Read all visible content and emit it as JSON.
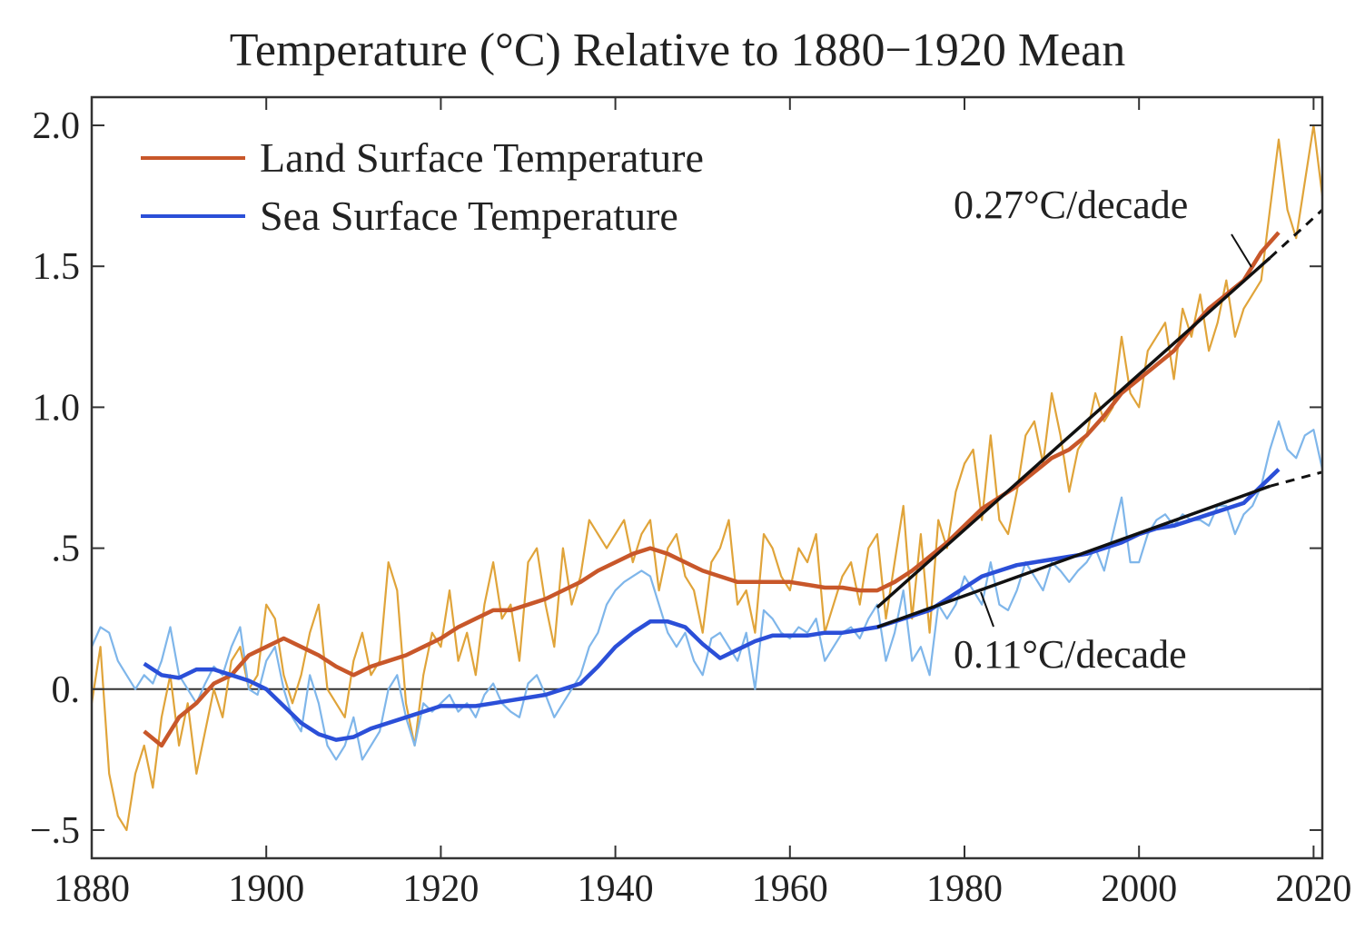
{
  "chart_data": {
    "type": "line",
    "title": "Temperature (°C) Relative to 1880−1920 Mean",
    "xlabel": "",
    "ylabel": "",
    "xlim": [
      1880,
      2021
    ],
    "ylim": [
      -0.6,
      2.1
    ],
    "x_ticks": [
      1880,
      1900,
      1920,
      1940,
      1960,
      1980,
      2000,
      2020
    ],
    "x_tick_labels": [
      "1880",
      "1900",
      "1920",
      "1940",
      "1960",
      "1980",
      "2000",
      "2020"
    ],
    "y_ticks": [
      -0.5,
      0,
      0.5,
      1.0,
      1.5,
      2.0
    ],
    "y_tick_labels": [
      "−.5",
      "0.",
      ".5",
      "1.0",
      "1.5",
      "2.0"
    ],
    "grid": false,
    "legend_position": "top-left",
    "legend": [
      {
        "label": "Land Surface Temperature",
        "color": "#c8572a"
      },
      {
        "label": "Sea Surface Temperature",
        "color": "#2b4fd8"
      }
    ],
    "colors": {
      "land_annual": "#e0a43a",
      "land_smooth": "#c8572a",
      "sea_annual": "#7fb6ea",
      "sea_smooth": "#2b4fd8",
      "trend": "#111111",
      "zero_line": "#333333"
    },
    "series": [
      {
        "name": "Land Surface Temperature",
        "role": "annual",
        "color": "#e0a43a",
        "x": [
          1880,
          1881,
          1882,
          1883,
          1884,
          1885,
          1886,
          1887,
          1888,
          1889,
          1890,
          1891,
          1892,
          1893,
          1894,
          1895,
          1896,
          1897,
          1898,
          1899,
          1900,
          1901,
          1902,
          1903,
          1904,
          1905,
          1906,
          1907,
          1908,
          1909,
          1910,
          1911,
          1912,
          1913,
          1914,
          1915,
          1916,
          1917,
          1918,
          1919,
          1920,
          1921,
          1922,
          1923,
          1924,
          1925,
          1926,
          1927,
          1928,
          1929,
          1930,
          1931,
          1932,
          1933,
          1934,
          1935,
          1936,
          1937,
          1938,
          1939,
          1940,
          1941,
          1942,
          1943,
          1944,
          1945,
          1946,
          1947,
          1948,
          1949,
          1950,
          1951,
          1952,
          1953,
          1954,
          1955,
          1956,
          1957,
          1958,
          1959,
          1960,
          1961,
          1962,
          1963,
          1964,
          1965,
          1966,
          1967,
          1968,
          1969,
          1970,
          1971,
          1972,
          1973,
          1974,
          1975,
          1976,
          1977,
          1978,
          1979,
          1980,
          1981,
          1982,
          1983,
          1984,
          1985,
          1986,
          1987,
          1988,
          1989,
          1990,
          1991,
          1992,
          1993,
          1994,
          1995,
          1996,
          1997,
          1998,
          1999,
          2000,
          2001,
          2002,
          2003,
          2004,
          2005,
          2006,
          2007,
          2008,
          2009,
          2010,
          2011,
          2012,
          2013,
          2014,
          2015,
          2016,
          2017,
          2018,
          2019,
          2020,
          2021
        ],
        "y": [
          -0.05,
          0.15,
          -0.3,
          -0.45,
          -0.5,
          -0.3,
          -0.2,
          -0.35,
          -0.1,
          0.05,
          -0.2,
          -0.05,
          -0.3,
          -0.15,
          0.0,
          -0.1,
          0.1,
          0.15,
          0.0,
          0.05,
          0.3,
          0.25,
          0.05,
          -0.05,
          0.05,
          0.2,
          0.3,
          0.0,
          -0.05,
          -0.1,
          0.1,
          0.2,
          0.05,
          0.1,
          0.45,
          0.35,
          -0.05,
          -0.2,
          0.05,
          0.2,
          0.15,
          0.35,
          0.1,
          0.2,
          0.05,
          0.3,
          0.45,
          0.25,
          0.3,
          0.1,
          0.45,
          0.5,
          0.3,
          0.15,
          0.5,
          0.3,
          0.4,
          0.6,
          0.55,
          0.5,
          0.55,
          0.6,
          0.45,
          0.55,
          0.6,
          0.35,
          0.5,
          0.55,
          0.4,
          0.35,
          0.2,
          0.45,
          0.5,
          0.6,
          0.3,
          0.35,
          0.2,
          0.55,
          0.5,
          0.4,
          0.35,
          0.5,
          0.45,
          0.55,
          0.2,
          0.3,
          0.4,
          0.45,
          0.3,
          0.5,
          0.55,
          0.25,
          0.45,
          0.65,
          0.25,
          0.55,
          0.2,
          0.6,
          0.5,
          0.7,
          0.8,
          0.85,
          0.6,
          0.9,
          0.6,
          0.55,
          0.7,
          0.9,
          0.95,
          0.8,
          1.05,
          0.9,
          0.7,
          0.85,
          0.9,
          1.05,
          0.95,
          1.0,
          1.25,
          1.05,
          1.0,
          1.2,
          1.25,
          1.3,
          1.1,
          1.35,
          1.25,
          1.4,
          1.2,
          1.3,
          1.45,
          1.25,
          1.35,
          1.4,
          1.45,
          1.7,
          1.95,
          1.7,
          1.6,
          1.8,
          2.0,
          1.75
        ]
      },
      {
        "name": "Land Surface Temperature",
        "role": "smoothed",
        "color": "#c8572a",
        "x": [
          1886,
          1888,
          1890,
          1892,
          1894,
          1896,
          1898,
          1900,
          1902,
          1904,
          1906,
          1908,
          1910,
          1912,
          1914,
          1916,
          1918,
          1920,
          1922,
          1924,
          1926,
          1928,
          1930,
          1932,
          1934,
          1936,
          1938,
          1940,
          1942,
          1944,
          1946,
          1948,
          1950,
          1952,
          1954,
          1956,
          1958,
          1960,
          1962,
          1964,
          1966,
          1968,
          1970,
          1972,
          1974,
          1976,
          1978,
          1980,
          1982,
          1984,
          1986,
          1988,
          1990,
          1992,
          1994,
          1996,
          1998,
          2000,
          2002,
          2004,
          2006,
          2008,
          2010,
          2012,
          2014,
          2016
        ],
        "y": [
          -0.15,
          -0.2,
          -0.1,
          -0.05,
          0.02,
          0.05,
          0.12,
          0.15,
          0.18,
          0.15,
          0.12,
          0.08,
          0.05,
          0.08,
          0.1,
          0.12,
          0.15,
          0.18,
          0.22,
          0.25,
          0.28,
          0.28,
          0.3,
          0.32,
          0.35,
          0.38,
          0.42,
          0.45,
          0.48,
          0.5,
          0.48,
          0.45,
          0.42,
          0.4,
          0.38,
          0.38,
          0.38,
          0.38,
          0.37,
          0.36,
          0.36,
          0.35,
          0.35,
          0.38,
          0.42,
          0.47,
          0.52,
          0.58,
          0.64,
          0.68,
          0.72,
          0.77,
          0.82,
          0.85,
          0.9,
          0.97,
          1.05,
          1.1,
          1.15,
          1.2,
          1.28,
          1.35,
          1.4,
          1.45,
          1.55,
          1.62
        ]
      },
      {
        "name": "Sea Surface Temperature",
        "role": "annual",
        "color": "#7fb6ea",
        "x": [
          1880,
          1881,
          1882,
          1883,
          1884,
          1885,
          1886,
          1887,
          1888,
          1889,
          1890,
          1891,
          1892,
          1893,
          1894,
          1895,
          1896,
          1897,
          1898,
          1899,
          1900,
          1901,
          1902,
          1903,
          1904,
          1905,
          1906,
          1907,
          1908,
          1909,
          1910,
          1911,
          1912,
          1913,
          1914,
          1915,
          1916,
          1917,
          1918,
          1919,
          1920,
          1921,
          1922,
          1923,
          1924,
          1925,
          1926,
          1927,
          1928,
          1929,
          1930,
          1931,
          1932,
          1933,
          1934,
          1935,
          1936,
          1937,
          1938,
          1939,
          1940,
          1941,
          1942,
          1943,
          1944,
          1945,
          1946,
          1947,
          1948,
          1949,
          1950,
          1951,
          1952,
          1953,
          1954,
          1955,
          1956,
          1957,
          1958,
          1959,
          1960,
          1961,
          1962,
          1963,
          1964,
          1965,
          1966,
          1967,
          1968,
          1969,
          1970,
          1971,
          1972,
          1973,
          1974,
          1975,
          1976,
          1977,
          1978,
          1979,
          1980,
          1981,
          1982,
          1983,
          1984,
          1985,
          1986,
          1987,
          1988,
          1989,
          1990,
          1991,
          1992,
          1993,
          1994,
          1995,
          1996,
          1997,
          1998,
          1999,
          2000,
          2001,
          2002,
          2003,
          2004,
          2005,
          2006,
          2007,
          2008,
          2009,
          2010,
          2011,
          2012,
          2013,
          2014,
          2015,
          2016,
          2017,
          2018,
          2019,
          2020,
          2021
        ],
        "y": [
          0.15,
          0.22,
          0.2,
          0.1,
          0.05,
          0.0,
          0.05,
          0.02,
          0.1,
          0.22,
          0.05,
          0.0,
          -0.05,
          0.02,
          0.08,
          0.05,
          0.15,
          0.22,
          0.0,
          -0.02,
          0.1,
          0.15,
          0.0,
          -0.1,
          -0.15,
          0.05,
          -0.05,
          -0.2,
          -0.25,
          -0.2,
          -0.1,
          -0.25,
          -0.2,
          -0.15,
          0.0,
          0.05,
          -0.1,
          -0.2,
          -0.05,
          -0.08,
          -0.05,
          -0.02,
          -0.08,
          -0.05,
          -0.1,
          -0.02,
          0.02,
          -0.05,
          -0.08,
          -0.1,
          0.02,
          0.05,
          -0.02,
          -0.1,
          -0.05,
          0.0,
          0.05,
          0.15,
          0.2,
          0.3,
          0.35,
          0.38,
          0.4,
          0.42,
          0.4,
          0.3,
          0.2,
          0.15,
          0.2,
          0.1,
          0.05,
          0.18,
          0.2,
          0.15,
          0.1,
          0.2,
          0.0,
          0.28,
          0.25,
          0.2,
          0.18,
          0.22,
          0.2,
          0.25,
          0.1,
          0.15,
          0.2,
          0.22,
          0.18,
          0.25,
          0.3,
          0.1,
          0.2,
          0.35,
          0.1,
          0.15,
          0.05,
          0.3,
          0.25,
          0.3,
          0.4,
          0.35,
          0.3,
          0.45,
          0.3,
          0.28,
          0.35,
          0.45,
          0.4,
          0.35,
          0.45,
          0.42,
          0.38,
          0.42,
          0.45,
          0.5,
          0.42,
          0.55,
          0.68,
          0.45,
          0.45,
          0.55,
          0.6,
          0.62,
          0.58,
          0.62,
          0.6,
          0.6,
          0.58,
          0.65,
          0.65,
          0.55,
          0.62,
          0.65,
          0.72,
          0.85,
          0.95,
          0.85,
          0.82,
          0.9,
          0.92,
          0.78
        ]
      },
      {
        "name": "Sea Surface Temperature",
        "role": "smoothed",
        "color": "#2b4fd8",
        "x": [
          1886,
          1888,
          1890,
          1892,
          1894,
          1896,
          1898,
          1900,
          1902,
          1904,
          1906,
          1908,
          1910,
          1912,
          1914,
          1916,
          1918,
          1920,
          1922,
          1924,
          1926,
          1928,
          1930,
          1932,
          1934,
          1936,
          1938,
          1940,
          1942,
          1944,
          1946,
          1948,
          1950,
          1952,
          1954,
          1956,
          1958,
          1960,
          1962,
          1964,
          1966,
          1968,
          1970,
          1972,
          1974,
          1976,
          1978,
          1980,
          1982,
          1984,
          1986,
          1988,
          1990,
          1992,
          1994,
          1996,
          1998,
          2000,
          2002,
          2004,
          2006,
          2008,
          2010,
          2012,
          2014,
          2016
        ],
        "y": [
          0.09,
          0.05,
          0.04,
          0.07,
          0.07,
          0.05,
          0.03,
          0.0,
          -0.06,
          -0.12,
          -0.16,
          -0.18,
          -0.17,
          -0.14,
          -0.12,
          -0.1,
          -0.08,
          -0.06,
          -0.06,
          -0.06,
          -0.05,
          -0.04,
          -0.03,
          -0.02,
          0.0,
          0.02,
          0.08,
          0.15,
          0.2,
          0.24,
          0.24,
          0.22,
          0.16,
          0.11,
          0.14,
          0.17,
          0.19,
          0.19,
          0.19,
          0.2,
          0.2,
          0.21,
          0.22,
          0.24,
          0.26,
          0.28,
          0.32,
          0.36,
          0.4,
          0.42,
          0.44,
          0.45,
          0.46,
          0.47,
          0.48,
          0.5,
          0.52,
          0.55,
          0.57,
          0.58,
          0.6,
          0.62,
          0.64,
          0.66,
          0.72,
          0.78
        ]
      }
    ],
    "trend_lines": [
      {
        "label": "0.27°C/decade",
        "x": [
          1970,
          2015
        ],
        "y": [
          0.29,
          1.53
        ],
        "dashed_extension": {
          "x": [
            2015,
            2021
          ],
          "y": [
            1.53,
            1.7
          ]
        }
      },
      {
        "label": "0.11°C/decade",
        "x": [
          1970,
          2015
        ],
        "y": [
          0.22,
          0.72
        ],
        "dashed_extension": {
          "x": [
            2015,
            2021
          ],
          "y": [
            0.72,
            0.77
          ]
        }
      }
    ]
  }
}
